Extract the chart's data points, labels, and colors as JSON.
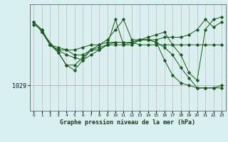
{
  "title": "Graphe pression niveau de la mer (hPa)",
  "ylabel_value": 1029,
  "ytick_labels": [
    "1029"
  ],
  "xlim": [
    -0.5,
    23.5
  ],
  "ylim": [
    1024,
    1045
  ],
  "xtick_positions": [
    0,
    1,
    2,
    3,
    4,
    5,
    6,
    7,
    8,
    9,
    10,
    11,
    12,
    13,
    14,
    15,
    16,
    17,
    18,
    19,
    20,
    21,
    22,
    23
  ],
  "bg_color": "#d8f0f0",
  "vgrid_color": "#d8b8b8",
  "hgrid_color": "#b0b0b0",
  "line_color": "#1a5c1a",
  "lines": [
    {
      "x": [
        0,
        1,
        2,
        3,
        4,
        5,
        6,
        7,
        8,
        9,
        10,
        11,
        12,
        13,
        14,
        15,
        16,
        17,
        18,
        19,
        20,
        21,
        22,
        23
      ],
      "y": [
        1041.5,
        1040,
        1037,
        1036,
        1036,
        1036,
        1036.5,
        1037,
        1037,
        1037.5,
        1037.5,
        1037.5,
        1037.5,
        1037,
        1037,
        1037,
        1037,
        1037,
        1037,
        1037,
        1037,
        1037,
        1037,
        1037
      ]
    },
    {
      "x": [
        0,
        1,
        2,
        3,
        4,
        5,
        6,
        7,
        8,
        9,
        10,
        11,
        12,
        13,
        14,
        15,
        16,
        17,
        18,
        19,
        20,
        21,
        22,
        23
      ],
      "y": [
        1041.5,
        1039.5,
        1037,
        1035.5,
        1033,
        1033,
        1034.5,
        1036,
        1036.5,
        1037,
        1042,
        1037,
        1037,
        1038,
        1038,
        1037.5,
        1034,
        1031,
        1029.5,
        1029,
        1028.5,
        1028.5,
        1028.5,
        1029
      ]
    },
    {
      "x": [
        1,
        3,
        4,
        5,
        6,
        7,
        8,
        9,
        10,
        11,
        12,
        13,
        14,
        15,
        16,
        17,
        18,
        19,
        20,
        21,
        22,
        23
      ],
      "y": [
        1039.5,
        1035.5,
        1033,
        1032,
        1034,
        1036,
        1036,
        1037,
        1037.5,
        1037.5,
        1037.5,
        1038,
        1038,
        1038,
        1038.5,
        1038.5,
        1038.5,
        1039,
        1040,
        1042,
        1040.5,
        1041.5
      ]
    },
    {
      "x": [
        0,
        1,
        2,
        3,
        4,
        5,
        6,
        7,
        8,
        9,
        10,
        11,
        12,
        13,
        14,
        15,
        16,
        17,
        18,
        19,
        20,
        21,
        22,
        23
      ],
      "y": [
        1041,
        1040,
        1037,
        1036,
        1035,
        1034.5,
        1034,
        1035,
        1036,
        1037,
        1037,
        1037,
        1037.5,
        1038,
        1038,
        1037.5,
        1036.5,
        1035,
        1032.5,
        1030.5,
        1028.5,
        1028.5,
        1028.5,
        1028.5
      ]
    },
    {
      "x": [
        1,
        2,
        3,
        4,
        5,
        6,
        7,
        8,
        9,
        10,
        11,
        12,
        13,
        14,
        15,
        16,
        17,
        18,
        19,
        20,
        21,
        22,
        23
      ],
      "y": [
        1040,
        1037,
        1036.5,
        1036,
        1035,
        1035,
        1036,
        1037,
        1038,
        1040,
        1042,
        1038,
        1038,
        1038.5,
        1039,
        1039.5,
        1037,
        1035,
        1031.5,
        1030,
        1040,
        1042,
        1042.5
      ]
    }
  ]
}
